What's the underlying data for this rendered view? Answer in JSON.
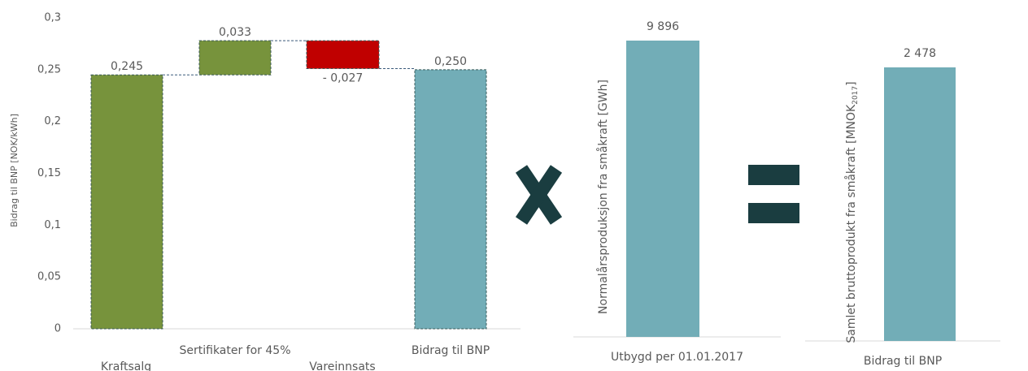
{
  "chart_data": [
    {
      "type": "waterfall",
      "ylabel": "Bidrag til BNP [NOK/kWh]",
      "categories": [
        "Kraftsalg",
        "Sertifikater for 45%",
        "Vareinnsats",
        "Bidrag til BNP"
      ],
      "values": [
        0.245,
        0.033,
        -0.027,
        0.25
      ],
      "value_labels": [
        "0,245",
        "0,033",
        "- 0,027",
        "0,250"
      ],
      "measure": [
        "absolute",
        "relative",
        "relative",
        "total"
      ],
      "colors": [
        "#77933c",
        "#77933c",
        "#c00000",
        "#72adb7"
      ],
      "ylim": [
        0,
        0.3
      ],
      "yticks": [
        0,
        {
          "value": 0.05,
          "label": "0,05"
        },
        {
          "value": 0.1,
          "label": "0,1"
        },
        {
          "value": 0.15,
          "label": "0,15"
        },
        {
          "value": 0.2,
          "label": "0,2"
        },
        {
          "value": 0.25,
          "label": "0,25"
        },
        {
          "value": 0.3,
          "label": "0,3"
        }
      ]
    },
    {
      "type": "bar",
      "ylabel": "Normalårsproduksjon fra småkraft [GWh]",
      "categories": [
        "Utbygd per 01.01.2017"
      ],
      "values": [
        9896
      ],
      "value_labels": [
        "9 896"
      ],
      "color": "#72adb7"
    },
    {
      "type": "bar",
      "ylabel_parts": [
        "Samlet bruttoprodukt fra småkraft [MNOK",
        "2017",
        "]"
      ],
      "categories": [
        "Bidrag til BNP"
      ],
      "values": [
        2478
      ],
      "value_labels": [
        "2 478"
      ],
      "color": "#72adb7"
    }
  ]
}
